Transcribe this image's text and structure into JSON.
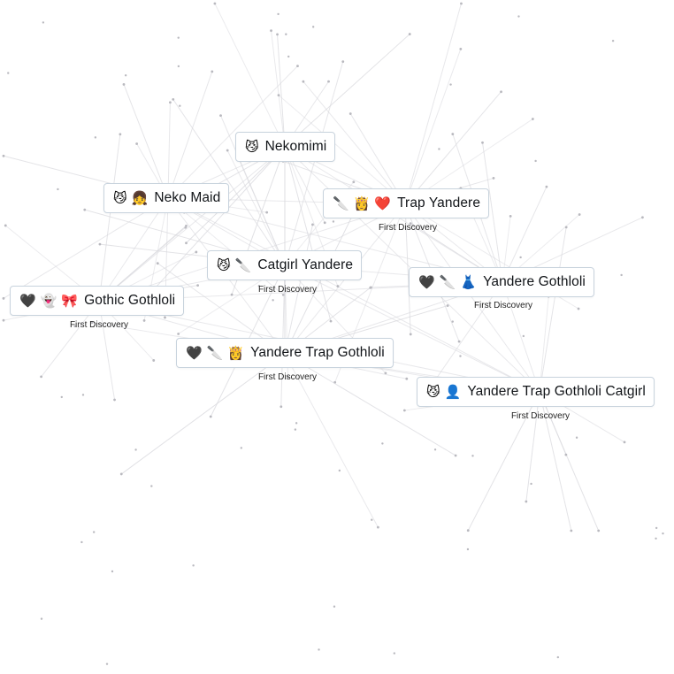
{
  "elements": [
    {
      "id": "nekomimi",
      "emojis": [
        "😼"
      ],
      "label": "Nekomimi",
      "first_discovery": ""
    },
    {
      "id": "neko-maid",
      "emojis": [
        "😼",
        "👧"
      ],
      "label": "Neko Maid",
      "first_discovery": ""
    },
    {
      "id": "trap-yandere",
      "emojis": [
        "🔪",
        "👸",
        "❤️"
      ],
      "label": "Trap Yandere",
      "first_discovery": "First Discovery"
    },
    {
      "id": "catgirl-yandere",
      "emojis": [
        "😼",
        "🔪"
      ],
      "label": "Catgirl Yandere",
      "first_discovery": "First Discovery"
    },
    {
      "id": "gothic-gothloli",
      "emojis": [
        "🖤",
        "👻",
        "🎀"
      ],
      "label": "Gothic Gothloli",
      "first_discovery": "First Discovery"
    },
    {
      "id": "yandere-gothloli",
      "emojis": [
        "🖤",
        "🔪",
        "👗"
      ],
      "label": "Yandere Gothloli",
      "first_discovery": "First Discovery"
    },
    {
      "id": "yandere-trap-gothloli",
      "emojis": [
        "🖤",
        "🔪",
        "👸"
      ],
      "label": "Yandere Trap Gothloli",
      "first_discovery": "First Discovery"
    },
    {
      "id": "yandere-trap-gothloli-catgirl",
      "emojis": [
        "😼",
        "👤"
      ],
      "label": "Yandere Trap Gothloli Catgirl",
      "first_discovery": "First Discovery"
    }
  ],
  "colors": {
    "line": "#d7d7dc",
    "dot": "#b9b9bf",
    "border": "#c8d3dd"
  }
}
